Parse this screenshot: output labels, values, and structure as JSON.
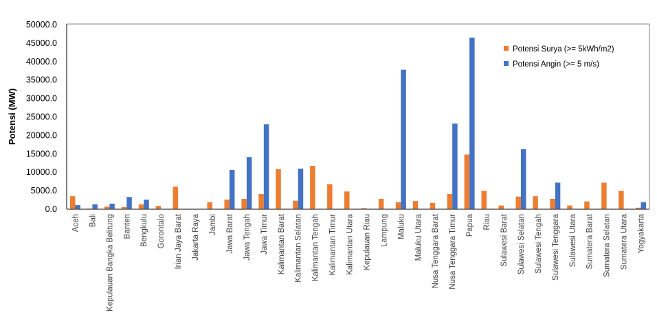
{
  "chart_data": {
    "type": "bar",
    "title": "",
    "xlabel": "",
    "ylabel": "Potensi (MW)",
    "ylim": [
      0,
      50000
    ],
    "yticks": [
      "0.0",
      "5000.0",
      "10000.0",
      "15000.0",
      "20000.0",
      "25000.0",
      "30000.0",
      "35000.0",
      "40000.0",
      "45000.0",
      "50000.0"
    ],
    "grid": false,
    "legend_position": "top-right",
    "categories": [
      "Aceh",
      "Bali",
      "Kepulauan Bangka Belitung",
      "Banten",
      "Bengkulu",
      "Gorontalo",
      "Irian Jaya Barat",
      "Jakarta Raya",
      "Jambi",
      "Jawa Barat",
      "Jawa Tengah",
      "Jawa Timur",
      "Kalimantan Barat",
      "Kalimantan Selatan",
      "Kalimantan Tengah",
      "Kalimantan Timur",
      "Kalimantan Utara",
      "Kepulauan Riau",
      "Lampung",
      "Maluku",
      "Maluku Utara",
      "Nusa Tenggara Barat",
      "Nusa Tenggara Timur",
      "Papua",
      "Riau",
      "Sulawesi Barat",
      "Sulawesi Selatan",
      "Sulawesi Tengah",
      "Sulawesi Tenggara",
      "Sulawesi Utara",
      "Sumatera Barat",
      "Sumatera Selatan",
      "Sumatera Utara",
      "Yogyakarta"
    ],
    "series": [
      {
        "name": "Potensi Surya (>= 5kWh/m2)",
        "color": "#ED7D31",
        "values": [
          3500,
          200,
          700,
          600,
          1300,
          900,
          6100,
          0,
          1900,
          2600,
          2800,
          4100,
          10900,
          2300,
          11700,
          6800,
          4800,
          300,
          2800,
          1900,
          2200,
          1700,
          4100,
          14800,
          5000,
          1000,
          3400,
          3500,
          2800,
          1000,
          2100,
          7200,
          5000,
          400
        ]
      },
      {
        "name": "Potensi Angin (>= 5 m/s)",
        "color": "#4472C4",
        "values": [
          1100,
          1300,
          1500,
          3300,
          2600,
          0,
          0,
          0,
          0,
          10600,
          14100,
          23000,
          0,
          11000,
          0,
          0,
          0,
          0,
          0,
          37800,
          0,
          0,
          23200,
          46500,
          0,
          0,
          16300,
          0,
          7200,
          0,
          0,
          0,
          0,
          1900
        ]
      }
    ]
  }
}
